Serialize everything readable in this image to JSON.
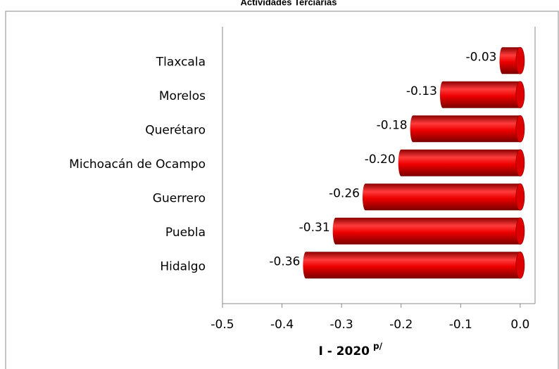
{
  "chart_data": {
    "type": "hbar",
    "title": "Actividades Terciarias",
    "categories": [
      "Tlaxcala",
      "Morelos",
      "Querétaro",
      "Michoacán de Ocampo",
      "Guerrero",
      "Puebla",
      "Hidalgo"
    ],
    "values": [
      -0.03,
      -0.13,
      -0.18,
      -0.2,
      -0.26,
      -0.31,
      -0.36
    ],
    "value_labels": [
      "-0.03",
      "-0.13",
      "-0.18",
      "-0.20",
      "-0.26",
      "-0.31",
      "-0.36"
    ],
    "color": "#ff0000",
    "xlim": [
      -0.5,
      0.025
    ],
    "xticks": [
      -0.5,
      -0.4,
      -0.3,
      -0.2,
      -0.1,
      {
        "value": 0,
        "label": "0.0"
      }
    ],
    "xlabel": "I - 2020",
    "xlabel_superscript": "p/"
  }
}
